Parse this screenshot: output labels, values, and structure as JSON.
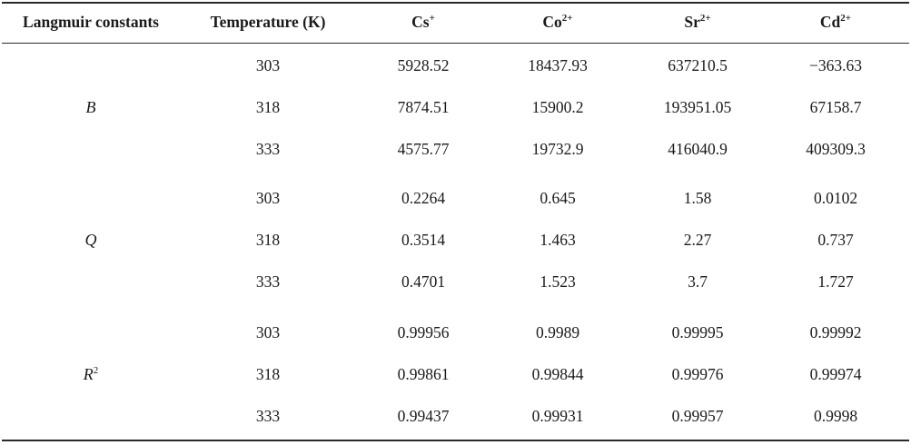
{
  "headers": {
    "constant": "Langmuir constants",
    "temperature": "Temperature (K)",
    "cs": "Cs",
    "cs_charge": "+",
    "co": "Co",
    "co_charge": "2+",
    "sr": "Sr",
    "sr_charge": "2+",
    "cd": "Cd",
    "cd_charge": "2+"
  },
  "groups": [
    {
      "label": "B",
      "label_sup": "",
      "rows": [
        {
          "temp": "303",
          "cs": "5928.52",
          "co": "18437.93",
          "sr": "637210.5",
          "cd": "−363.63"
        },
        {
          "temp": "318",
          "cs": "7874.51",
          "co": "15900.2",
          "sr": "193951.05",
          "cd": "67158.7"
        },
        {
          "temp": "333",
          "cs": "4575.77",
          "co": "19732.9",
          "sr": "416040.9",
          "cd": "409309.3"
        }
      ]
    },
    {
      "label": "Q",
      "label_sup": "",
      "rows": [
        {
          "temp": "303",
          "cs": "0.2264",
          "co": "0.645",
          "sr": "1.58",
          "cd": "0.0102"
        },
        {
          "temp": "318",
          "cs": "0.3514",
          "co": "1.463",
          "sr": "2.27",
          "cd": "0.737"
        },
        {
          "temp": "333",
          "cs": "0.4701",
          "co": "1.523",
          "sr": "3.7",
          "cd": "1.727"
        }
      ]
    },
    {
      "label": "R",
      "label_sup": "2",
      "rows": [
        {
          "temp": "303",
          "cs": "0.99956",
          "co": "0.9989",
          "sr": "0.99995",
          "cd": "0.99992"
        },
        {
          "temp": "318",
          "cs": "0.99861",
          "co": "0.99844",
          "sr": "0.99976",
          "cd": "0.99974"
        },
        {
          "temp": "333",
          "cs": "0.99437",
          "co": "0.99931",
          "sr": "0.99957",
          "cd": "0.9998"
        }
      ]
    }
  ]
}
